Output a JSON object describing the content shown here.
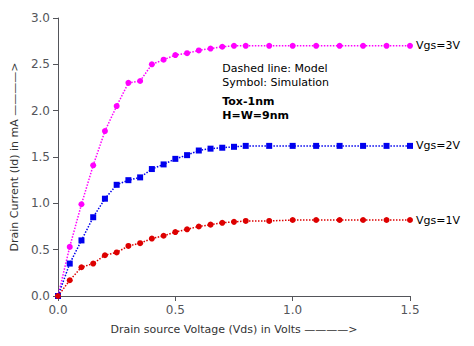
{
  "chart_data": {
    "type": "line",
    "xlabel": "Drain source Voltage (Vds) in Volts ————>",
    "ylabel": "Drain Current (Id) in mA ————>",
    "xlim": [
      0,
      1.5
    ],
    "ylim": [
      0,
      3.0
    ],
    "xticks": [
      {
        "value": 0,
        "label": "0.0"
      },
      0.5,
      {
        "value": 1,
        "label": "1.0"
      },
      1.5
    ],
    "yticks": [
      {
        "value": 0,
        "label": "0.0"
      },
      0.5,
      {
        "value": 1,
        "label": "1.0"
      },
      1.5,
      {
        "value": 2,
        "label": "2.0"
      },
      2.5,
      {
        "value": 3,
        "label": "3.0"
      }
    ],
    "grid": false,
    "annotations": [
      "Dashed line: Model",
      "Symbol: Simulation",
      "Tox-1nm",
      "H=W=9nm"
    ],
    "series": [
      {
        "name": "Vgs=3V",
        "color": "#FF00FF",
        "marker": "circle",
        "line_style": "dotted",
        "x": [
          0.0,
          0.05,
          0.1,
          0.15,
          0.2,
          0.25,
          0.3,
          0.35,
          0.4,
          0.45,
          0.5,
          0.55,
          0.6,
          0.65,
          0.7,
          0.75,
          0.8,
          0.9,
          1.0,
          1.1,
          1.2,
          1.3,
          1.4,
          1.5
        ],
        "values": [
          0.0,
          0.53,
          0.99,
          1.41,
          1.78,
          2.05,
          2.3,
          2.32,
          2.5,
          2.55,
          2.6,
          2.62,
          2.65,
          2.67,
          2.69,
          2.7,
          2.7,
          2.7,
          2.7,
          2.7,
          2.7,
          2.7,
          2.7,
          2.7
        ]
      },
      {
        "name": "Vgs=2V",
        "color": "#0000EE",
        "marker": "square",
        "line_style": "dotted",
        "x": [
          0.0,
          0.05,
          0.1,
          0.15,
          0.2,
          0.25,
          0.3,
          0.35,
          0.4,
          0.45,
          0.5,
          0.55,
          0.6,
          0.65,
          0.7,
          0.75,
          0.8,
          0.9,
          1.0,
          1.1,
          1.2,
          1.3,
          1.4,
          1.5
        ],
        "values": [
          0.0,
          0.35,
          0.6,
          0.85,
          1.05,
          1.2,
          1.25,
          1.28,
          1.37,
          1.42,
          1.48,
          1.52,
          1.57,
          1.59,
          1.6,
          1.61,
          1.62,
          1.62,
          1.62,
          1.62,
          1.62,
          1.62,
          1.62,
          1.62
        ]
      },
      {
        "name": "Vgs=1V",
        "color": "#DD0000",
        "marker": "circle",
        "line_style": "dotted",
        "x": [
          0.0,
          0.05,
          0.1,
          0.15,
          0.2,
          0.25,
          0.3,
          0.35,
          0.4,
          0.45,
          0.5,
          0.55,
          0.6,
          0.65,
          0.7,
          0.75,
          0.8,
          0.9,
          1.0,
          1.1,
          1.2,
          1.3,
          1.4,
          1.5
        ],
        "values": [
          0.0,
          0.17,
          0.31,
          0.35,
          0.44,
          0.47,
          0.54,
          0.57,
          0.62,
          0.65,
          0.69,
          0.72,
          0.75,
          0.77,
          0.79,
          0.8,
          0.81,
          0.81,
          0.82,
          0.82,
          0.82,
          0.82,
          0.82,
          0.82
        ]
      }
    ]
  }
}
